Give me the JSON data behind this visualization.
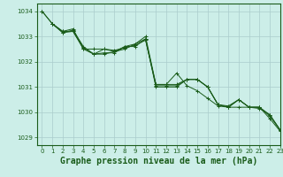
{
  "background_color": "#cceee8",
  "grid_color": "#aacccc",
  "line_color": "#1a5c1a",
  "title": "Graphe pression niveau de la mer (hPa)",
  "xlim": [
    -0.5,
    23
  ],
  "ylim": [
    1028.7,
    1034.3
  ],
  "yticks": [
    1029,
    1030,
    1031,
    1032,
    1033,
    1034
  ],
  "xticks": [
    0,
    1,
    2,
    3,
    4,
    5,
    6,
    7,
    8,
    9,
    10,
    11,
    12,
    13,
    14,
    15,
    16,
    17,
    18,
    19,
    20,
    21,
    22,
    23
  ],
  "lines": [
    {
      "x": [
        0,
        1,
        2,
        3,
        4,
        5,
        6,
        7,
        8,
        9,
        10,
        11,
        12,
        13,
        14,
        15,
        16,
        17,
        18,
        19,
        20,
        21,
        22,
        23
      ],
      "y": [
        1034.0,
        1033.5,
        1033.2,
        1033.3,
        1032.5,
        1032.5,
        1032.5,
        1032.45,
        1032.55,
        1032.65,
        1032.85,
        1031.1,
        1031.1,
        1031.1,
        1031.3,
        1031.3,
        1031.0,
        1030.3,
        1030.25,
        1030.5,
        1030.2,
        1030.2,
        1029.9,
        1029.3
      ]
    },
    {
      "x": [
        1,
        2,
        3,
        4,
        5,
        6,
        7,
        8,
        9,
        10,
        11,
        12,
        13,
        14,
        15,
        16,
        17,
        18,
        19,
        20,
        21,
        22,
        23
      ],
      "y": [
        1033.5,
        1033.15,
        1033.25,
        1032.6,
        1032.3,
        1032.35,
        1032.35,
        1032.6,
        1032.6,
        1032.9,
        1031.05,
        1031.05,
        1031.05,
        1031.3,
        1031.3,
        1031.0,
        1030.3,
        1030.2,
        1030.5,
        1030.2,
        1030.15,
        1029.9,
        1029.3
      ]
    },
    {
      "x": [
        1,
        2,
        3,
        4,
        5,
        6,
        7,
        8,
        9,
        10,
        11,
        12,
        13,
        14,
        15,
        16,
        17,
        18,
        19,
        20,
        21,
        22,
        23
      ],
      "y": [
        1033.5,
        1033.15,
        1033.2,
        1032.55,
        1032.3,
        1032.3,
        1032.4,
        1032.5,
        1032.7,
        1033.0,
        1031.1,
        1031.1,
        1031.55,
        1031.05,
        1030.85,
        1030.55,
        1030.25,
        1030.2,
        1030.2,
        1030.2,
        1030.2,
        1029.75,
        1029.25
      ]
    },
    {
      "x": [
        0,
        1,
        2,
        3,
        4,
        5,
        6,
        7,
        8,
        9,
        10,
        11,
        12,
        13,
        14,
        15,
        16,
        17,
        18,
        19,
        20,
        21,
        22,
        23
      ],
      "y": [
        1034.0,
        1033.5,
        1033.2,
        1033.2,
        1032.5,
        1032.3,
        1032.5,
        1032.4,
        1032.6,
        1032.7,
        1032.9,
        1031.0,
        1031.0,
        1031.0,
        1031.3,
        1031.3,
        1031.0,
        1030.3,
        1030.2,
        1030.5,
        1030.2,
        1030.2,
        1029.85,
        1029.3
      ]
    }
  ],
  "title_fontsize": 7,
  "tick_fontsize": 5,
  "title_color": "#1a5c1a",
  "tick_color": "#1a5c1a",
  "spine_color": "#1a5c1a"
}
